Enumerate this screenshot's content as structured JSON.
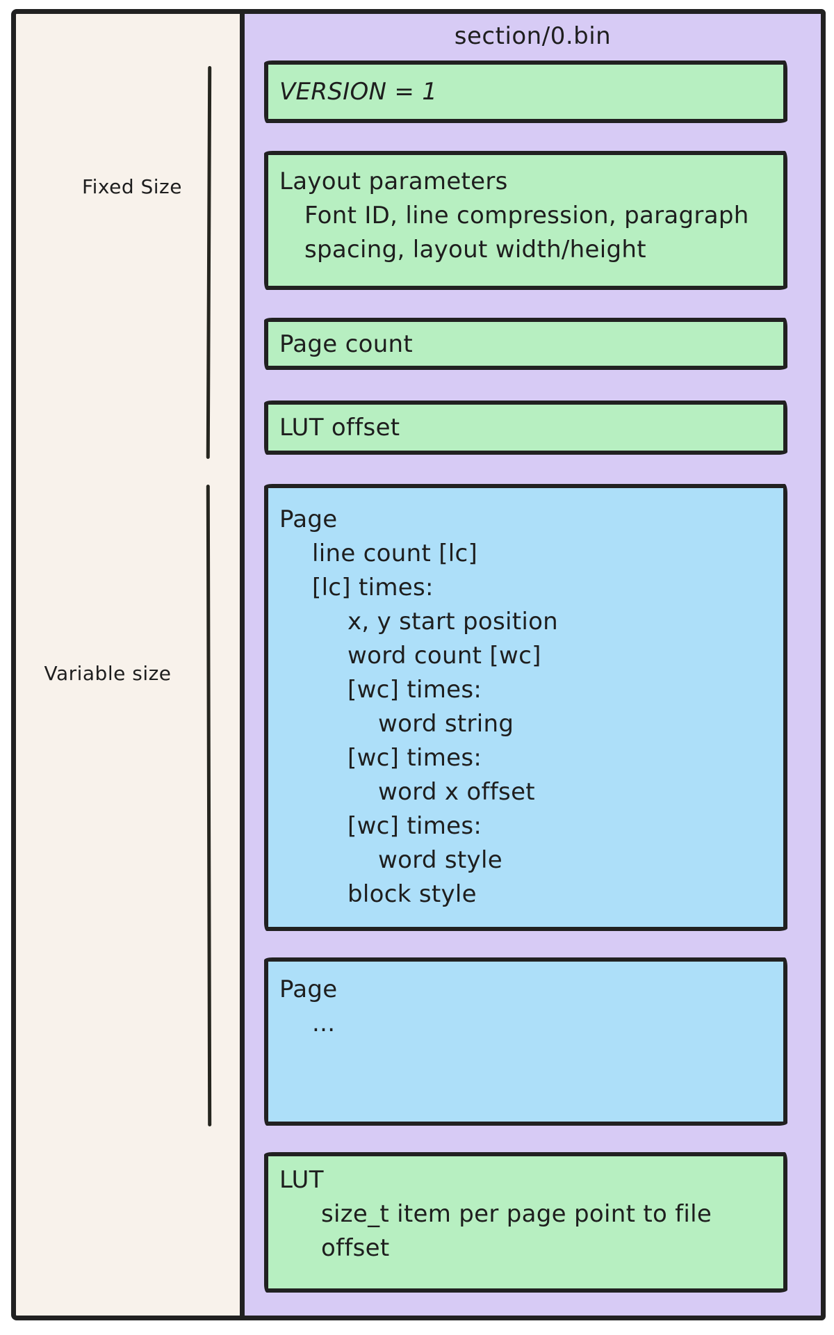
{
  "diagram_title": "section/0.bin",
  "left_panel": {
    "fixed_size_label": "Fixed Size",
    "variable_size_label": "Variable size"
  },
  "file_layout": {
    "version_box": {
      "l1": "VERSION = 1"
    },
    "layout_params_box": {
      "l1": "Layout parameters",
      "l2": "Font ID, line compression, paragraph",
      "l3": "spacing, layout width/height"
    },
    "page_count_box": {
      "l1": "Page count"
    },
    "lut_offset_box": {
      "l1": "LUT offset"
    },
    "page_detail_box": {
      "l1": "Page",
      "l2": "line count [lc]",
      "l3": "[lc] times:",
      "l4": "x, y start position",
      "l5": "word count [wc]",
      "l6": "[wc] times:",
      "l7": "word string",
      "l8": "[wc] times:",
      "l9": "word x offset",
      "l10": "[wc] times:",
      "l11": "word style",
      "l12": "block style"
    },
    "page_ellipsis_box": {
      "l1": "Page",
      "l2": "..."
    },
    "lut_box": {
      "l1": "LUT",
      "l2": "size_t item per page point to file",
      "l3": "offset"
    }
  },
  "colors": {
    "stroke": "#212121",
    "canvas_bg": "#ffffff",
    "left_panel_bg": "#f8f2eb",
    "file_panel_bg": "#d7cbf5",
    "fixed_box_bg": "#b7efc1",
    "variable_box_bg": "#addff9",
    "text": "#1e1e1e"
  }
}
